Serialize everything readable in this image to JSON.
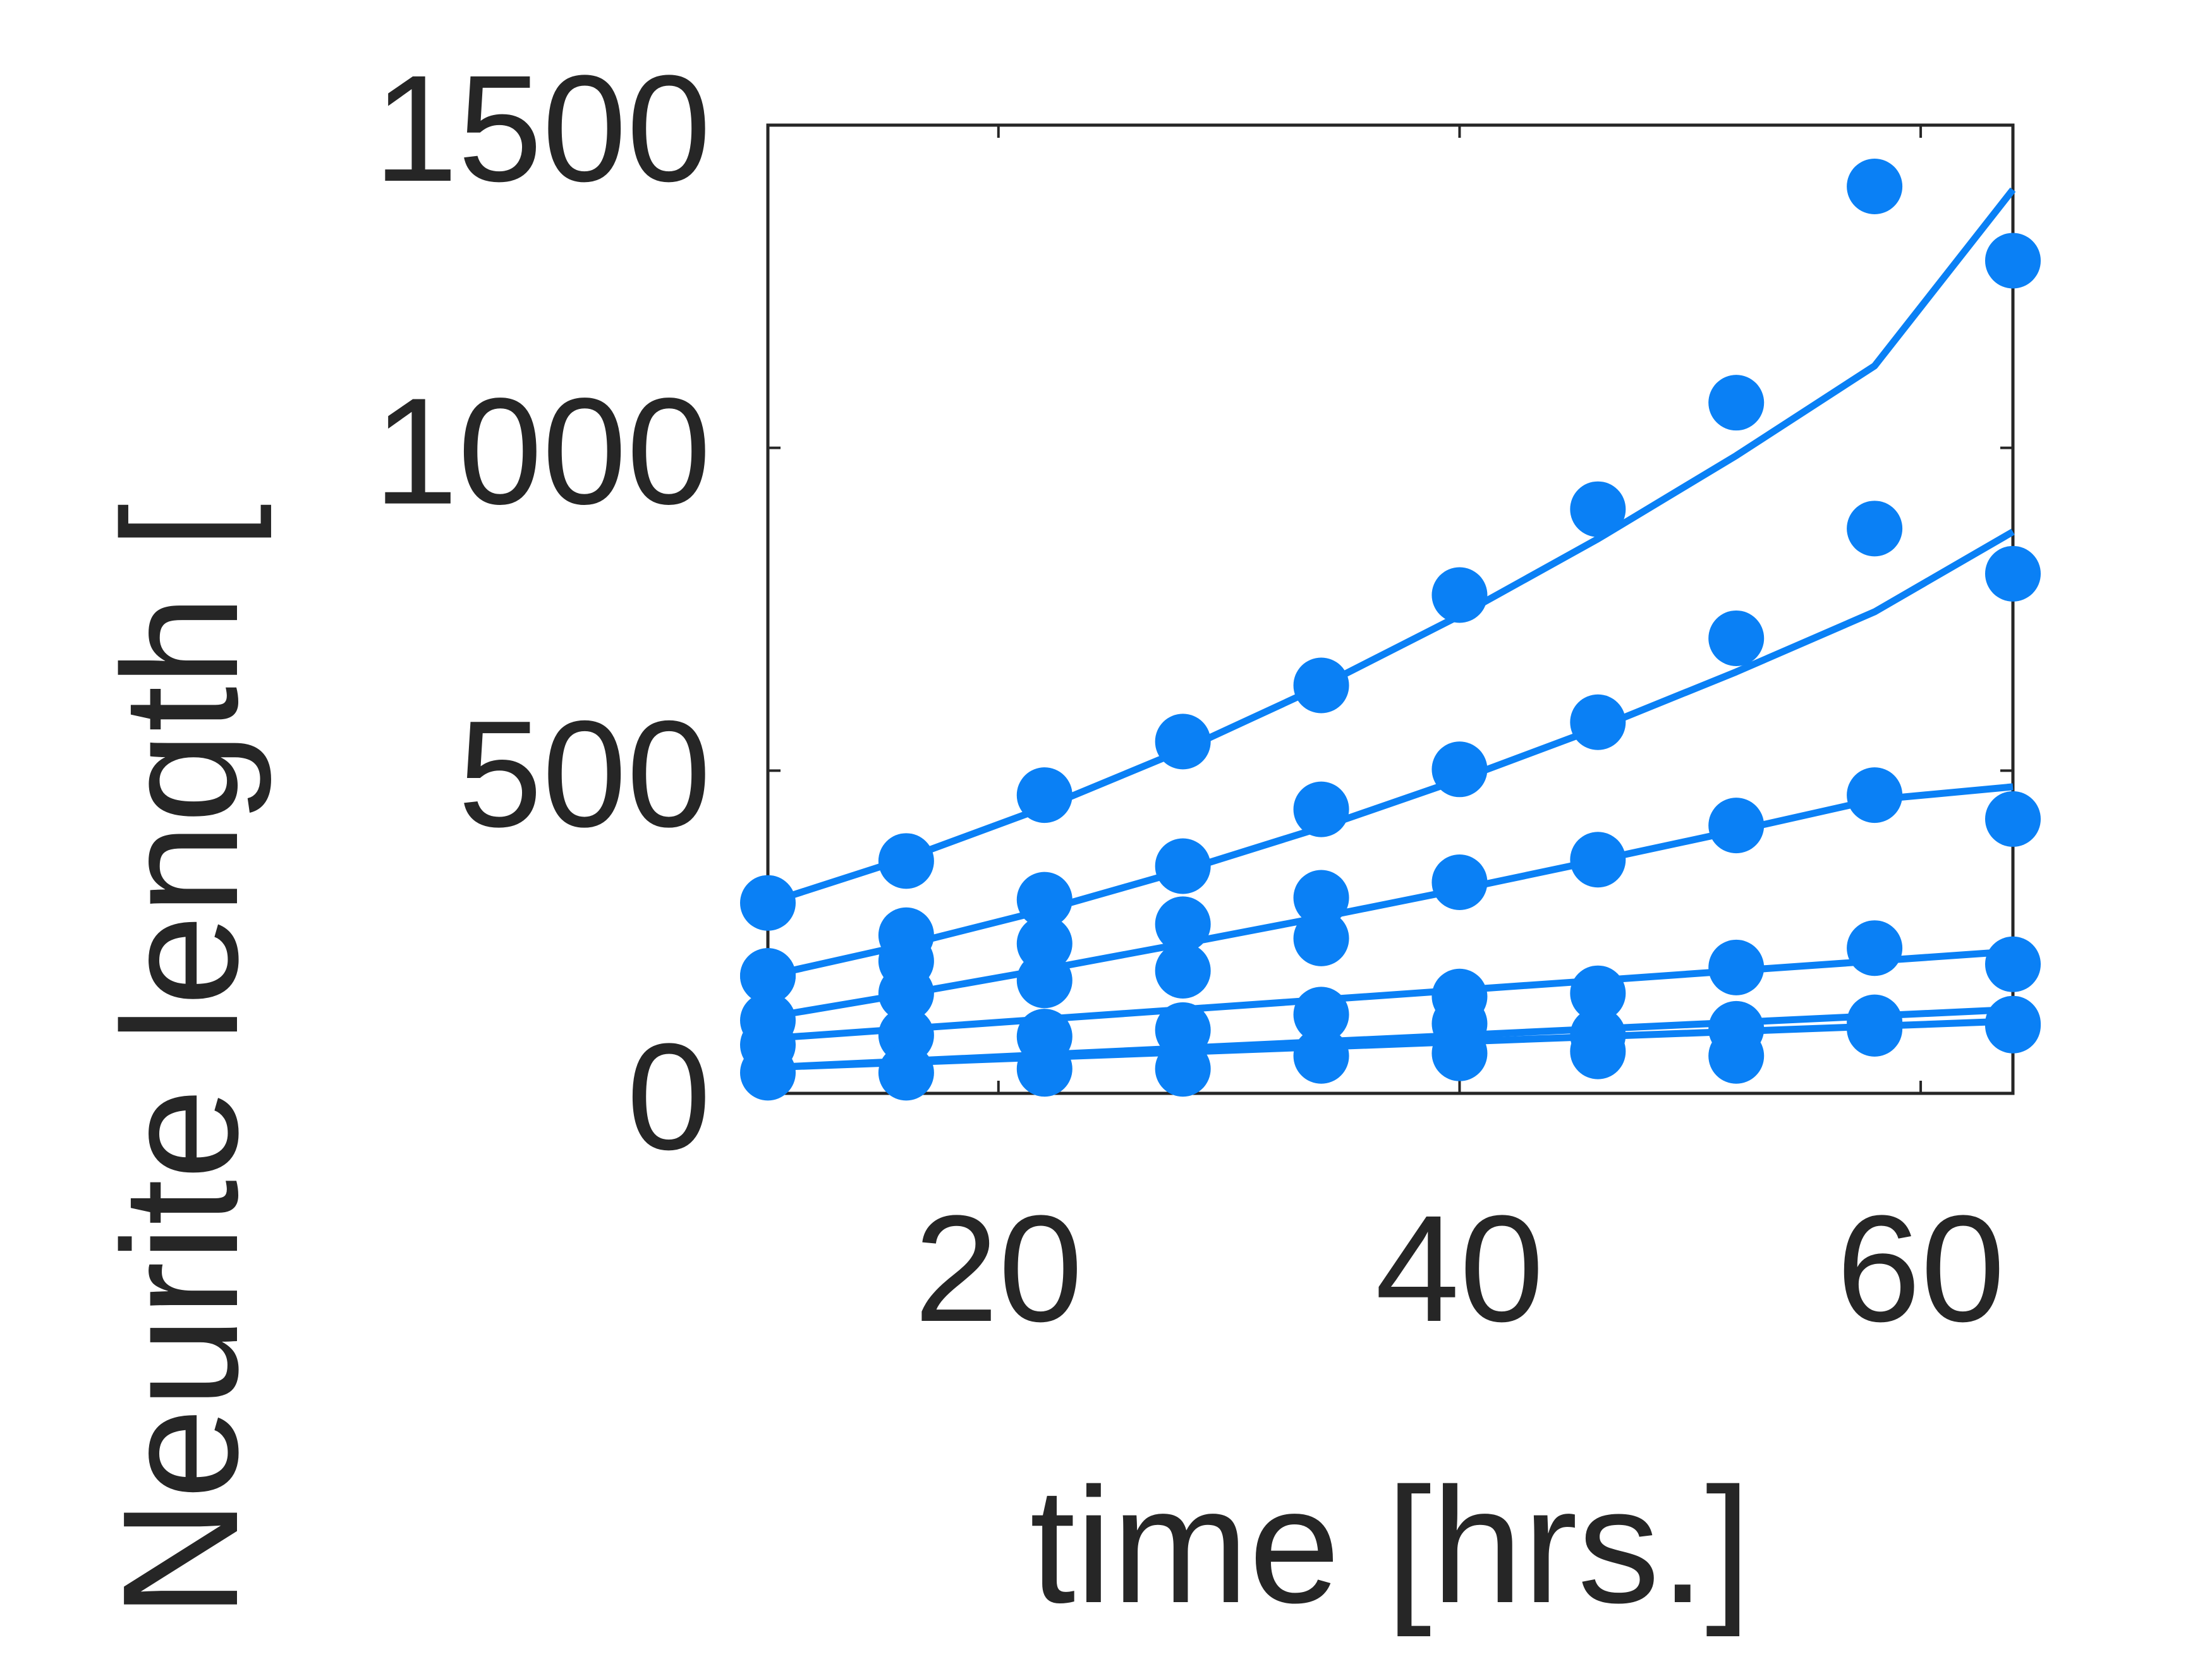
{
  "chart_data": {
    "type": "scatter",
    "xlabel": "time [hrs.]",
    "ylabel": "Neurite length [",
    "xlim": [
      10,
      64
    ],
    "ylim": [
      0,
      1500
    ],
    "xticks": [
      20,
      40,
      60
    ],
    "xtick_labels": [
      "20",
      "40",
      "60"
    ],
    "yticks": [
      0,
      500,
      1000,
      1500
    ],
    "ytick_labels": [
      "0",
      "500",
      "1000",
      "1500"
    ],
    "grid": false,
    "color": "#0a80f5",
    "series": [
      {
        "x": [
          10,
          16,
          22,
          28,
          34,
          40,
          46,
          52,
          58,
          64
        ],
        "points": [
          295,
          360,
          462,
          545,
          632,
          772,
          905,
          1070,
          1405,
          1290
        ],
        "fit": [
          295,
          364,
          443,
          532,
          631,
          740,
          859,
          988,
          1127,
          1400
        ]
      },
      {
        "x": [
          10,
          16,
          22,
          28,
          34,
          40,
          46,
          52,
          58,
          64
        ],
        "points": [
          182,
          245,
          300,
          352,
          440,
          502,
          575,
          705,
          875,
          805
        ],
        "fit": [
          182,
          230,
          284,
          345,
          412,
          486,
          566,
          653,
          746,
          870
        ]
      },
      {
        "x": [
          10,
          16,
          22,
          28,
          34,
          40,
          46,
          52,
          58,
          64
        ],
        "points": [
          182,
          205,
          232,
          262,
          303,
          327,
          362,
          415,
          462,
          425
        ],
        "fit": [
          118,
          154,
          192,
          232,
          273,
          316,
          361,
          407,
          455,
          475
        ]
      },
      {
        "x": [
          10,
          16,
          22,
          28,
          34,
          40,
          46,
          52,
          58,
          64
        ],
        "points": [
          113,
          155,
          175,
          190,
          240,
          150,
          155,
          195,
          225,
          200
        ],
        "fit": [
          85,
          100,
          115,
          130,
          145,
          160,
          175,
          190,
          205,
          220
        ]
      },
      {
        "x": [
          10,
          16,
          22,
          28,
          34,
          40,
          46,
          52,
          58,
          64
        ],
        "points": [
          75,
          90,
          88,
          98,
          122,
          108,
          90,
          100,
          110,
          108
        ],
        "fit": [
          40,
          50,
          60,
          70,
          80,
          90,
          100,
          110,
          120,
          130
        ]
      },
      {
        "x": [
          10,
          16,
          22,
          28,
          34,
          40,
          46,
          52,
          58,
          64
        ],
        "points": [
          32,
          32,
          38,
          38,
          58,
          62,
          65,
          58,
          100,
          105
        ],
        "fit": [
          40,
          48,
          56,
          64,
          72,
          80,
          88,
          96,
          104,
          112
        ]
      }
    ]
  }
}
